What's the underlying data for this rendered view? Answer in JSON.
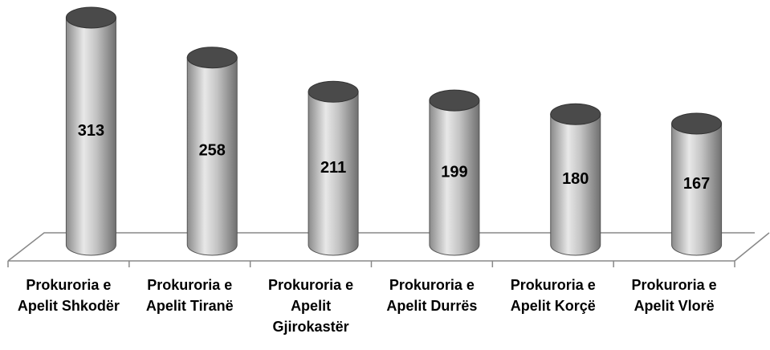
{
  "chart_data": {
    "type": "bar",
    "categories": [
      "Prokuroria e Apelit Shkodër",
      "Prokuroria e Apelit Tiranë",
      "Prokuroria e Apelit Gjirokastër",
      "Prokuroria e Apelit Durrës",
      "Prokuroria e Apelit Korçë",
      "Prokuroria e Apelit Vlorë"
    ],
    "values": [
      313,
      258,
      211,
      199,
      180,
      167
    ],
    "color": "#b8b8b8"
  }
}
